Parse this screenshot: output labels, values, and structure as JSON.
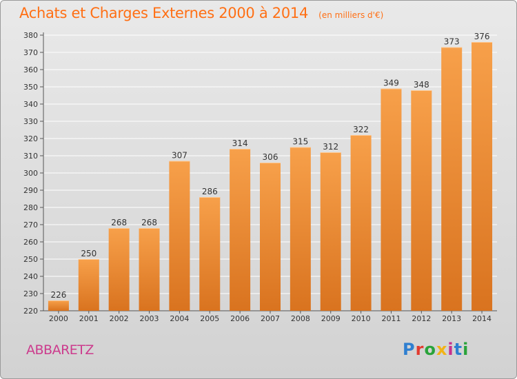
{
  "header": {
    "title": "Achats et Charges Externes 2000 à 2014",
    "unit": "(en milliers d'€)"
  },
  "footer": {
    "town": "ABBARETZ",
    "brand": "Proxiti",
    "brand_colors": [
      "#2f7fd0",
      "#e23b2f",
      "#29a33a",
      "#f2b316",
      "#c8318d",
      "#2f7fd0",
      "#29a33a"
    ]
  },
  "colors": {
    "bar_light": "#f7a04a",
    "bar_dark": "#d9731f",
    "title": "#ff6f14",
    "town": "#cc3b8d",
    "axis": "#555555",
    "grid": "#ffffff"
  },
  "chart_data": {
    "type": "bar",
    "title": "Achats et Charges Externes 2000 à 2014",
    "subtitle": "(en milliers d'€)",
    "xlabel": "",
    "ylabel": "",
    "categories": [
      "2000",
      "2001",
      "2002",
      "2003",
      "2004",
      "2005",
      "2006",
      "2007",
      "2008",
      "2009",
      "2010",
      "2011",
      "2012",
      "2013",
      "2014"
    ],
    "values": [
      226,
      250,
      268,
      268,
      307,
      286,
      314,
      306,
      315,
      312,
      322,
      349,
      348,
      373,
      376
    ],
    "ylim": [
      220,
      380
    ],
    "ytick_step": 10,
    "grid": true,
    "legend": "none"
  }
}
